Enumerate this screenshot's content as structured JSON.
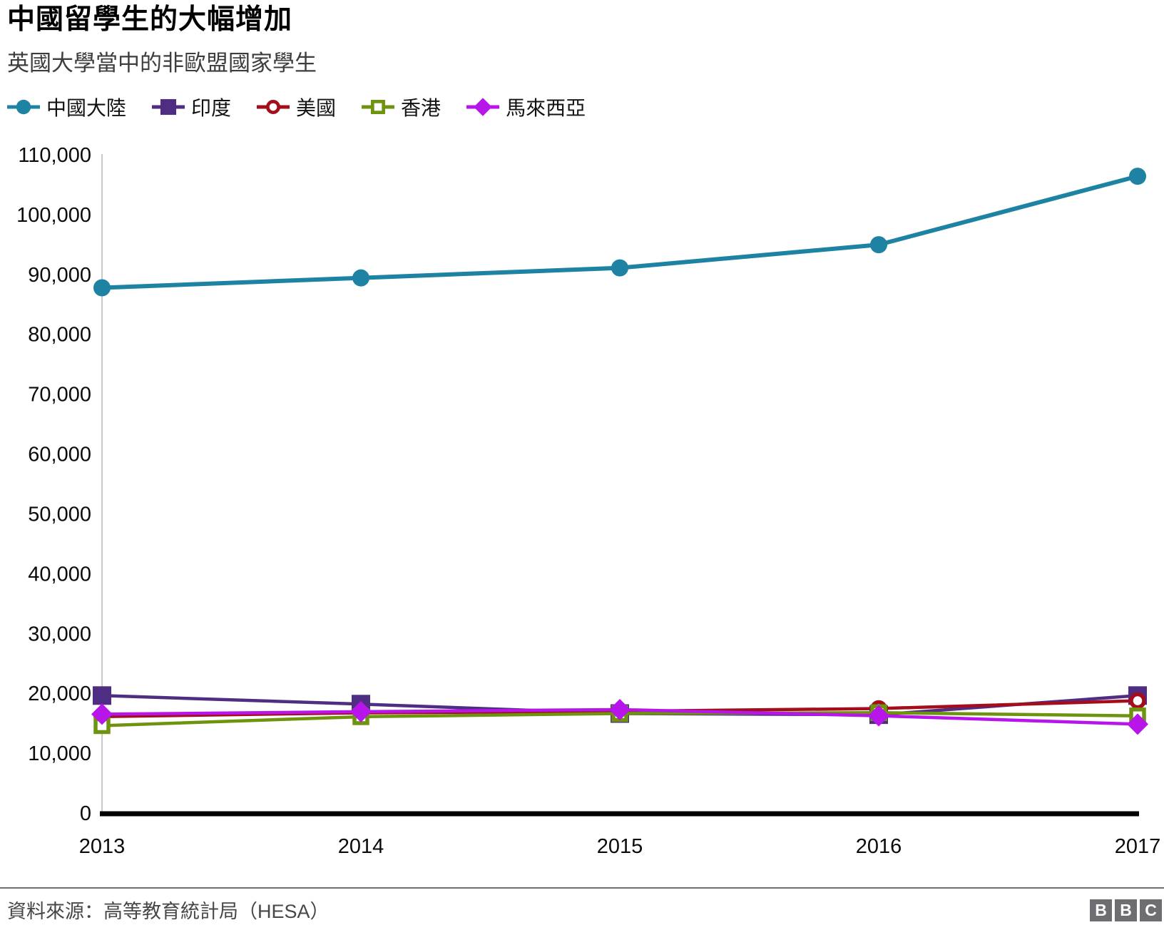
{
  "header": {
    "title": "中國留學生的大幅增加",
    "subtitle": "英國大學當中的非歐盟國家學生"
  },
  "chart_data": {
    "type": "line",
    "x": [
      2013,
      2014,
      2015,
      2016,
      2017
    ],
    "x_tick_labels": [
      "2013",
      "2014",
      "2015",
      "2016",
      "2017"
    ],
    "ylim": [
      0,
      110000
    ],
    "ytick_step": 10000,
    "grid": false,
    "legend_position": "top",
    "axis_color": "#000000",
    "yaxis_line_color": "#c9c9c9",
    "series": [
      {
        "name": "中國大陸",
        "slug": "mainland-china",
        "color": "#1e83a3",
        "marker": "circle-filled",
        "values": [
          87895,
          89540,
          91215,
          95090,
          106530
        ]
      },
      {
        "name": "印度",
        "slug": "india",
        "color": "#4f2d82",
        "marker": "square-filled",
        "values": [
          19750,
          18320,
          16745,
          16550,
          19750
        ]
      },
      {
        "name": "美國",
        "slug": "usa",
        "color": "#a30d1c",
        "marker": "circle-open",
        "values": [
          16235,
          16865,
          17115,
          17580,
          18885
        ]
      },
      {
        "name": "香港",
        "slug": "hong-kong",
        "color": "#6e930f",
        "marker": "square-open",
        "values": [
          14725,
          16215,
          16745,
          16890,
          16350
        ]
      },
      {
        "name": "馬來西亞",
        "slug": "malaysia",
        "color": "#b715e9",
        "marker": "diamond-filled",
        "values": [
          16635,
          17060,
          17405,
          16370,
          14970
        ]
      }
    ]
  },
  "footer": {
    "source": "資料來源：高等教育統計局（HESA）",
    "logo_letters": [
      "B",
      "B",
      "C"
    ]
  }
}
